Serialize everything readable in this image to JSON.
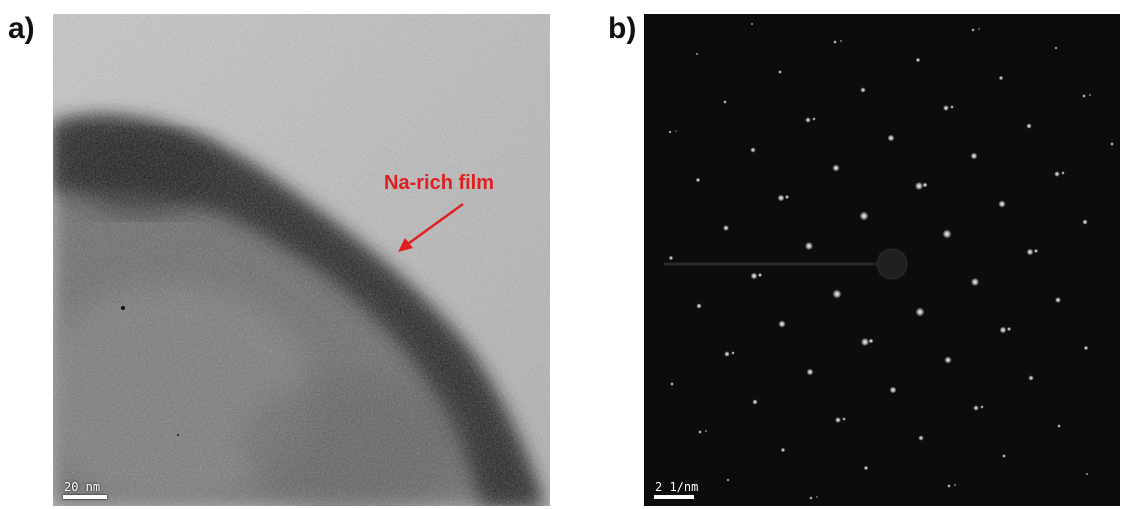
{
  "panels": [
    {
      "label": "a)",
      "annotation": "Na-rich film",
      "scale_bar": "20 nm",
      "colors": {
        "annotation": "#e02020",
        "film_background": "#b8b8b8",
        "particle_dark": "#2a2a2a"
      }
    },
    {
      "label": "b)",
      "scale_bar": "2 1/nm",
      "colors": {
        "background": "#0c0c0c",
        "spots": "#ffffff"
      }
    }
  ]
}
